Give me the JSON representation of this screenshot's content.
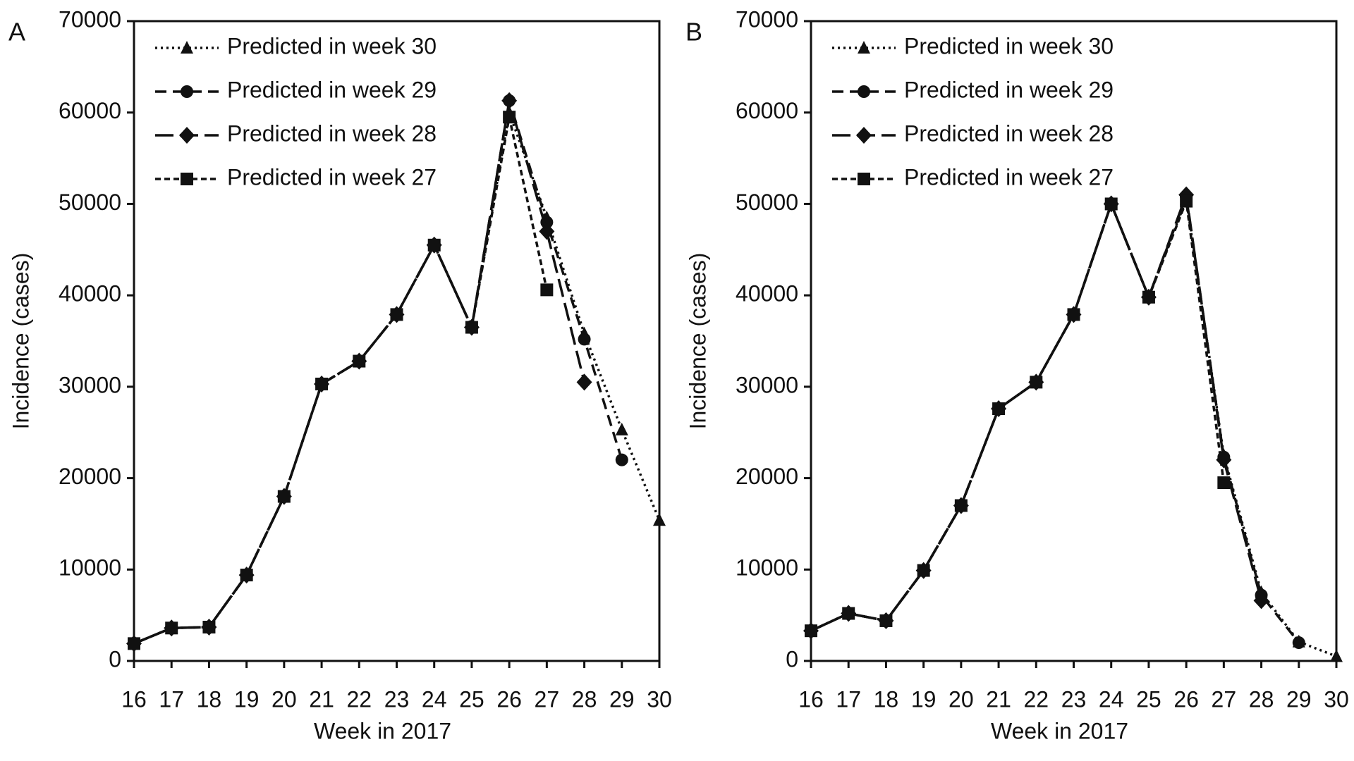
{
  "chart_data": [
    {
      "type": "line",
      "label": "A",
      "x_label": "Week in 2017",
      "y_label": "Incidence (cases)",
      "x": [
        16,
        17,
        18,
        19,
        20,
        21,
        22,
        23,
        24,
        25,
        26,
        27,
        28,
        29,
        30
      ],
      "xlim": [
        16,
        30
      ],
      "xticks": [
        16,
        17,
        18,
        19,
        20,
        21,
        22,
        23,
        24,
        25,
        26,
        27,
        28,
        29,
        30
      ],
      "ylim": [
        0,
        70000
      ],
      "yticks": [
        0,
        10000,
        20000,
        30000,
        40000,
        50000,
        60000,
        70000
      ],
      "legend": "upper left",
      "series": [
        {
          "name": "Predicted in week 30",
          "color": "#111111",
          "line_style": "dotted",
          "marker": "triangle",
          "values": [
            1900,
            3600,
            3700,
            9400,
            18000,
            30300,
            32800,
            37900,
            45500,
            36500,
            60000,
            48500,
            35800,
            25300,
            15400
          ]
        },
        {
          "name": "Predicted in week 29",
          "color": "#111111",
          "line_style": "dashed",
          "marker": "circle",
          "values": [
            1900,
            3600,
            3700,
            9400,
            18000,
            30300,
            32800,
            37900,
            45500,
            36500,
            61300,
            48000,
            35200,
            22000,
            null
          ]
        },
        {
          "name": "Predicted in week 28",
          "color": "#111111",
          "line_style": "long-dashed",
          "marker": "diamond",
          "values": [
            1900,
            3600,
            3700,
            9400,
            18000,
            30300,
            32800,
            37900,
            45500,
            36500,
            61300,
            47000,
            30500,
            null,
            null
          ]
        },
        {
          "name": "Predicted in week 27",
          "color": "#111111",
          "line_style": "short-dashed",
          "marker": "square",
          "values": [
            1900,
            3600,
            3700,
            9400,
            18000,
            30300,
            32800,
            37900,
            45500,
            36500,
            59500,
            40600,
            null,
            null,
            null
          ]
        }
      ]
    },
    {
      "type": "line",
      "label": "B",
      "x_label": "Week in 2017",
      "y_label": "Incidence (cases)",
      "x": [
        16,
        17,
        18,
        19,
        20,
        21,
        22,
        23,
        24,
        25,
        26,
        27,
        28,
        29,
        30
      ],
      "xlim": [
        16,
        30
      ],
      "xticks": [
        16,
        17,
        18,
        19,
        20,
        21,
        22,
        23,
        24,
        25,
        26,
        27,
        28,
        29,
        30
      ],
      "ylim": [
        0,
        70000
      ],
      "yticks": [
        0,
        10000,
        20000,
        30000,
        40000,
        50000,
        60000,
        70000
      ],
      "legend": "upper left",
      "series": [
        {
          "name": "Predicted in week 30",
          "color": "#111111",
          "line_style": "dotted",
          "marker": "triangle",
          "values": [
            3300,
            5200,
            4400,
            9900,
            17000,
            27600,
            30500,
            37900,
            50000,
            39800,
            50500,
            22500,
            7500,
            2100,
            500
          ]
        },
        {
          "name": "Predicted in week 29",
          "color": "#111111",
          "line_style": "dashed",
          "marker": "circle",
          "values": [
            3300,
            5200,
            4400,
            9900,
            17000,
            27600,
            30500,
            37900,
            50000,
            39800,
            50800,
            22300,
            7200,
            2000,
            null
          ]
        },
        {
          "name": "Predicted in week 28",
          "color": "#111111",
          "line_style": "long-dashed",
          "marker": "diamond",
          "values": [
            3300,
            5200,
            4400,
            9900,
            17000,
            27600,
            30500,
            37900,
            50000,
            39800,
            51000,
            22000,
            6600,
            null,
            null
          ]
        },
        {
          "name": "Predicted in week 27",
          "color": "#111111",
          "line_style": "short-dashed",
          "marker": "square",
          "values": [
            3300,
            5200,
            4400,
            9900,
            17000,
            27600,
            30500,
            37900,
            50000,
            39800,
            50300,
            19500,
            null,
            null,
            null
          ]
        }
      ]
    }
  ]
}
